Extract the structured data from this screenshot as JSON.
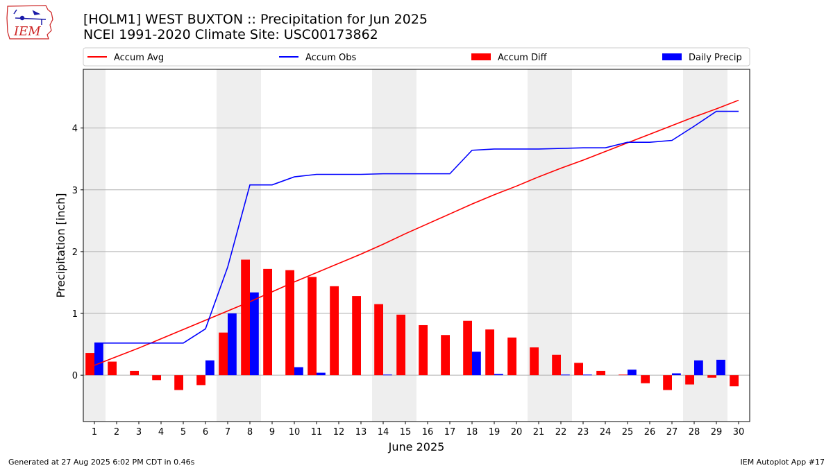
{
  "header": {
    "title_line1": "[HOLM1] WEST BUXTON :: Precipitation for Jun 2025",
    "title_line2": "NCEI 1991-2020 Climate Site: USC00173862",
    "logo_text": "IEM"
  },
  "footer": {
    "left": "Generated at 27 Aug 2025 6:02 PM CDT in 0.46s",
    "right": "IEM Autoplot App #17"
  },
  "colors": {
    "accum_avg": "#ff0000",
    "accum_obs": "#0000ff",
    "accum_diff": "#ff0000",
    "daily_precip": "#0000ff",
    "weekend_shade": "#eeeeee",
    "grid": "#b0b0b0"
  },
  "chart_data": {
    "type": "bar",
    "xlabel": "June 2025",
    "ylabel": "Precipitation [inch]",
    "ylim": [
      -0.75,
      4.95
    ],
    "xlim": [
      0.5,
      30.5
    ],
    "grid": "y",
    "legend_position": "top",
    "x": [
      1,
      2,
      3,
      4,
      5,
      6,
      7,
      8,
      9,
      10,
      11,
      12,
      13,
      14,
      15,
      16,
      17,
      18,
      19,
      20,
      21,
      22,
      23,
      24,
      25,
      26,
      27,
      28,
      29,
      30
    ],
    "x_tick_labels": [
      "1",
      "2",
      "3",
      "4",
      "5",
      "6",
      "7",
      "8",
      "9",
      "10",
      "11",
      "12",
      "13",
      "14",
      "15",
      "16",
      "17",
      "18",
      "19",
      "20",
      "21",
      "22",
      "23",
      "24",
      "25",
      "26",
      "27",
      "28",
      "29",
      "30"
    ],
    "y_ticks": [
      0,
      1,
      2,
      3,
      4
    ],
    "y_tick_labels": [
      "0",
      "1",
      "2",
      "3",
      "4"
    ],
    "shaded_days": [
      [
        1,
        1
      ],
      [
        7,
        8
      ],
      [
        14,
        15
      ],
      [
        21,
        22
      ],
      [
        28,
        29
      ]
    ],
    "series": [
      {
        "name": "Accum Avg",
        "kind": "line",
        "values": [
          0.16,
          0.3,
          0.44,
          0.59,
          0.74,
          0.89,
          1.04,
          1.19,
          1.35,
          1.51,
          1.66,
          1.81,
          1.96,
          2.12,
          2.29,
          2.45,
          2.61,
          2.77,
          2.92,
          3.06,
          3.21,
          3.35,
          3.48,
          3.62,
          3.76,
          3.9,
          4.04,
          4.18,
          4.31,
          4.45
        ]
      },
      {
        "name": "Accum Obs",
        "kind": "line",
        "values": [
          0.52,
          0.52,
          0.52,
          0.52,
          0.52,
          0.75,
          1.75,
          3.08,
          3.08,
          3.21,
          3.25,
          3.25,
          3.25,
          3.26,
          3.26,
          3.26,
          3.26,
          3.64,
          3.66,
          3.66,
          3.66,
          3.67,
          3.68,
          3.68,
          3.77,
          3.77,
          3.8,
          4.03,
          4.27,
          4.27
        ]
      },
      {
        "name": "Accum Diff",
        "kind": "bar",
        "values": [
          0.36,
          0.22,
          0.07,
          -0.08,
          -0.24,
          -0.16,
          0.69,
          1.87,
          1.72,
          1.7,
          1.59,
          1.44,
          1.28,
          1.15,
          0.98,
          0.81,
          0.65,
          0.88,
          0.74,
          0.61,
          0.45,
          0.33,
          0.2,
          0.07,
          0.01,
          -0.13,
          -0.24,
          -0.15,
          -0.04,
          -0.18
        ]
      },
      {
        "name": "Daily Precip",
        "kind": "bar",
        "values": [
          0.52,
          0,
          0,
          0,
          0,
          0.24,
          1.0,
          1.34,
          0,
          0.13,
          0.04,
          0,
          0,
          0.01,
          0,
          0,
          0,
          0.38,
          0.02,
          0,
          0,
          0.01,
          0.01,
          0,
          0.09,
          0,
          0.03,
          0.24,
          0.25,
          0
        ]
      }
    ]
  }
}
